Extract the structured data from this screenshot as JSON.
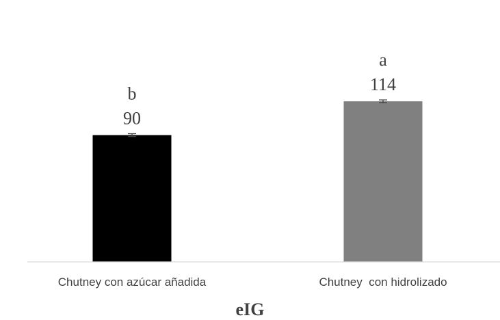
{
  "chart_data": {
    "type": "bar",
    "categories": [
      "Chutney con azúcar añadida",
      "Chutney  con hidrolizado"
    ],
    "values": [
      90,
      114
    ],
    "significance_letters": [
      "b",
      "a"
    ],
    "value_labels": [
      "90",
      "114"
    ],
    "error": [
      1,
      1
    ],
    "bar_colors": [
      "#000000",
      "#808080"
    ],
    "xlabel": "eIG",
    "ylabel": "",
    "title": "",
    "ylim": [
      0,
      120
    ],
    "grid": false,
    "legend": "none"
  }
}
